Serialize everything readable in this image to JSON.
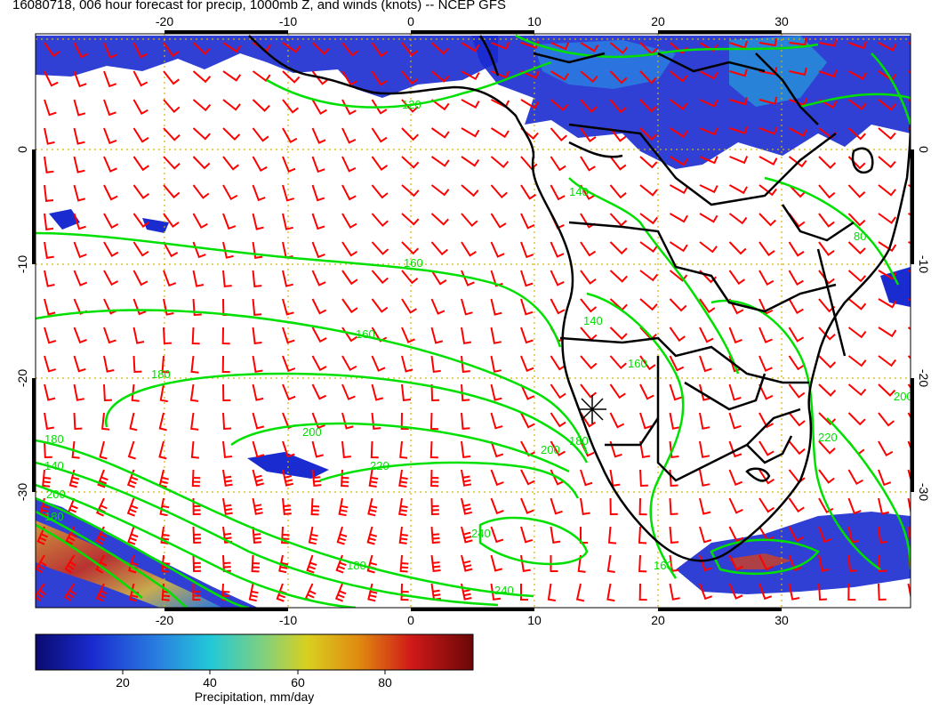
{
  "title": "16080718, 006 hour forecast for precip, 1000mb Z, and winds (knots) -- NCEP GFS",
  "map": {
    "lon_range": [
      -30,
      40
    ],
    "lat_range": [
      -40,
      10
    ],
    "top_lon_ticks": [
      "-20",
      "-10",
      "0",
      "10",
      "20",
      "30"
    ],
    "bottom_lon_ticks": [
      "-20",
      "-10",
      "0",
      "10",
      "20",
      "30"
    ],
    "left_lat_ticks": [
      "0",
      "-10",
      "-20",
      "-30"
    ],
    "right_lat_ticks": [
      "0",
      "-10",
      "-20",
      "-30"
    ],
    "contour_labels": [
      "120",
      "140",
      "160",
      "160",
      "180",
      "180",
      "200",
      "220",
      "240",
      "240",
      "140",
      "160",
      "180",
      "200",
      "180",
      "200",
      "80",
      "180",
      "140",
      "200",
      "160",
      "220"
    ],
    "colors": {
      "wind_barbs": "#ff0000",
      "contours": "#00e000",
      "coastlines": "#000000",
      "gridlines": "#d8b400",
      "precip_low": "#1a2ba8",
      "precip_high": "#c01010"
    }
  },
  "colorbar": {
    "ticks": [
      "20",
      "40",
      "60",
      "80"
    ],
    "label": "Precipitation, mm/day",
    "range": [
      0,
      100
    ]
  }
}
